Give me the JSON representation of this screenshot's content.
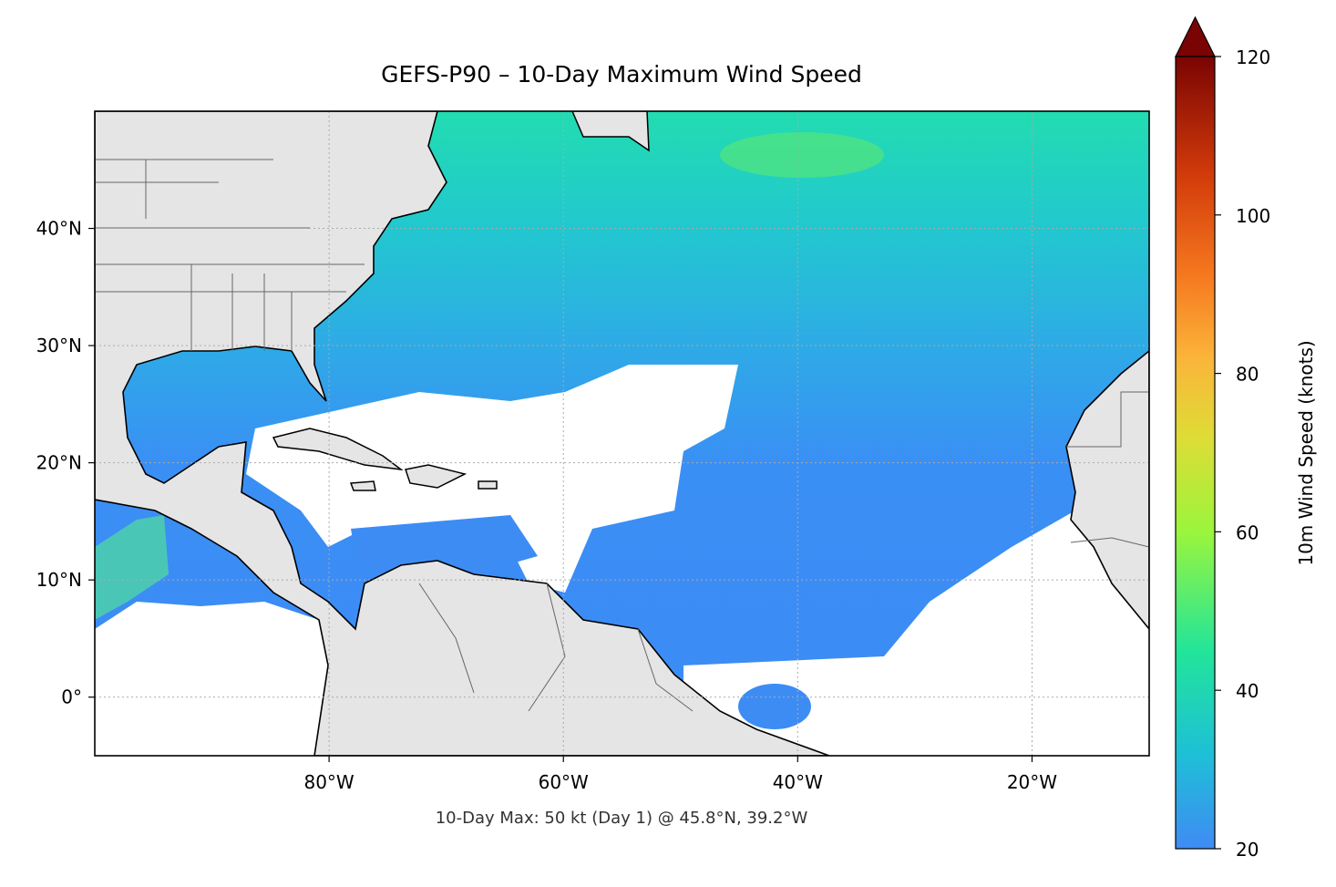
{
  "map": {
    "title": "GEFS-P90 – 10-Day Maximum Wind Speed",
    "xlim": [
      -100,
      -10
    ],
    "ylim": [
      -5,
      50
    ],
    "xticks": [
      {
        "value": -80,
        "label": "80°W"
      },
      {
        "value": -60,
        "label": "60°W"
      },
      {
        "value": -40,
        "label": "40°W"
      },
      {
        "value": -20,
        "label": "20°W"
      }
    ],
    "yticks": [
      {
        "value": 0,
        "label": "0°"
      },
      {
        "value": 10,
        "label": "10°N"
      },
      {
        "value": 20,
        "label": "20°N"
      },
      {
        "value": 30,
        "label": "30°N"
      },
      {
        "value": 40,
        "label": "40°N"
      }
    ],
    "grid": true,
    "annotation": "10-Day Max: 50 kt (Day 1) @ 45.8°N, 39.2°W",
    "colorbar": {
      "label": "10m Wind Speed (knots)",
      "lim": [
        20,
        120
      ],
      "ticks": [
        20,
        40,
        60,
        80,
        100,
        120
      ],
      "extend": "max"
    }
  }
}
